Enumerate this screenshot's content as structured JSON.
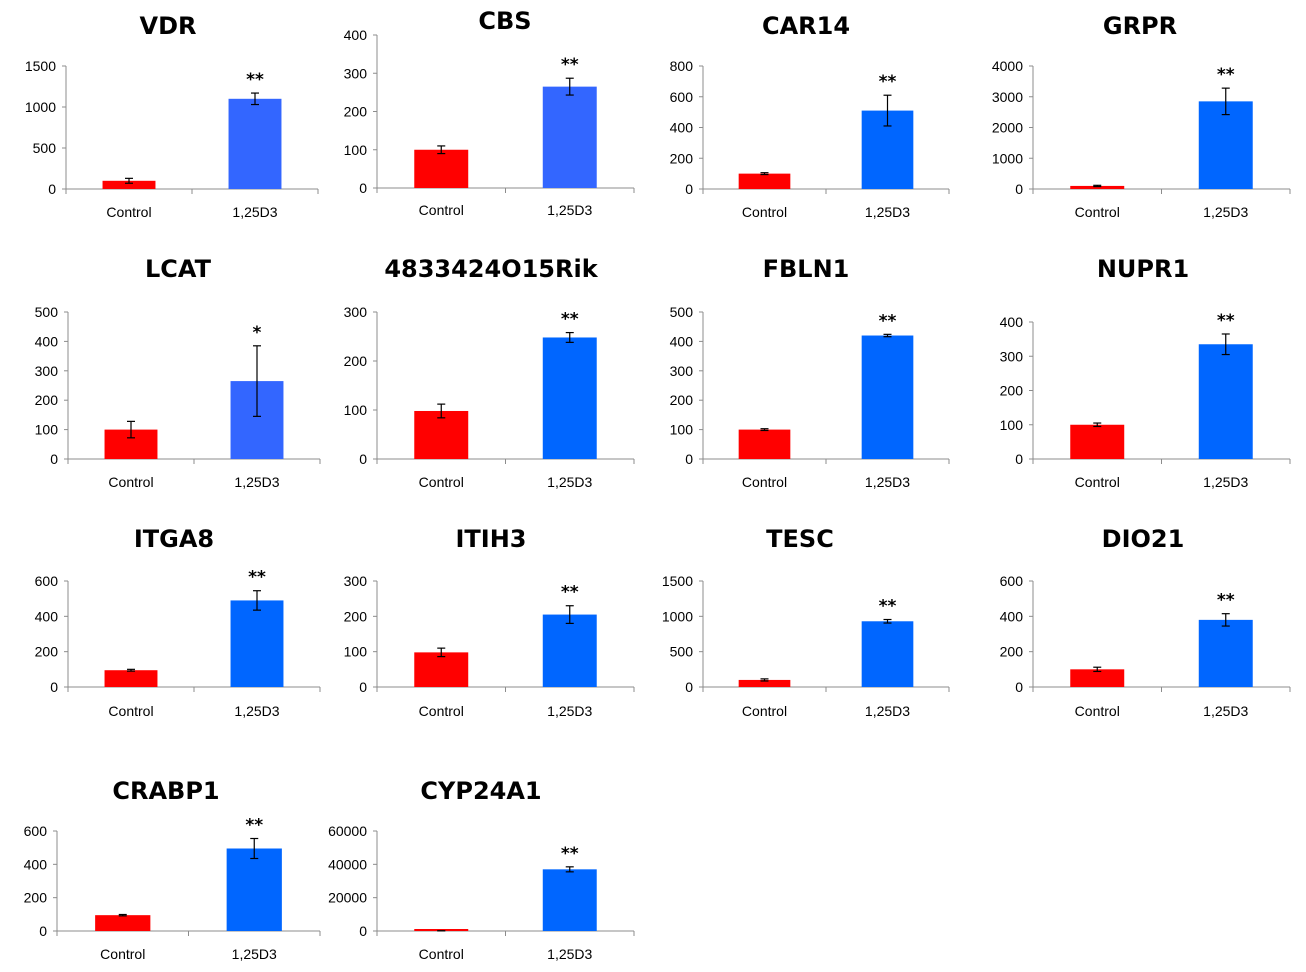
{
  "chart_data": [
    {
      "type": "bar",
      "title": "VDR",
      "categories": [
        "Control",
        "1,25D3"
      ],
      "values": [
        100,
        1100
      ],
      "errors": [
        30,
        70
      ],
      "ylim": [
        0,
        1500
      ],
      "yticks": [
        "0",
        "500",
        "1000",
        "1500"
      ],
      "significance": "**",
      "colors": [
        "#ff0000",
        "#3366ff"
      ]
    },
    {
      "type": "bar",
      "title": "CBS",
      "categories": [
        "Control",
        "1,25D3"
      ],
      "values": [
        100,
        265
      ],
      "errors": [
        10,
        22
      ],
      "ylim": [
        0,
        400
      ],
      "yticks": [
        "0",
        "100",
        "200",
        "300",
        "400"
      ],
      "significance": "**",
      "colors": [
        "#ff0000",
        "#3366ff"
      ]
    },
    {
      "type": "bar",
      "title": "CAR14",
      "categories": [
        "Control",
        "1,25D3"
      ],
      "values": [
        100,
        510
      ],
      "errors": [
        6,
        100
      ],
      "ylim": [
        0,
        800
      ],
      "yticks": [
        "0",
        "200",
        "400",
        "600",
        "800"
      ],
      "significance": "**",
      "colors": [
        "#ff0000",
        "#0066ff"
      ]
    },
    {
      "type": "bar",
      "title": "GRPR",
      "categories": [
        "Control",
        "1,25D3"
      ],
      "values": [
        100,
        2850
      ],
      "errors": [
        20,
        430
      ],
      "ylim": [
        0,
        4000
      ],
      "yticks": [
        "0",
        "1000",
        "2000",
        "3000",
        "4000"
      ],
      "significance": "**",
      "colors": [
        "#ff0000",
        "#0066ff"
      ]
    },
    {
      "type": "bar",
      "title": "LCAT",
      "categories": [
        "Control",
        "1,25D3"
      ],
      "values": [
        100,
        265
      ],
      "errors": [
        28,
        120
      ],
      "ylim": [
        0,
        500
      ],
      "yticks": [
        "0",
        "100",
        "200",
        "300",
        "400",
        "500"
      ],
      "significance": "*",
      "colors": [
        "#ff0000",
        "#3366ff"
      ]
    },
    {
      "type": "bar",
      "title": "4833424O15Rik",
      "categories": [
        "Control",
        "1,25D3"
      ],
      "values": [
        98,
        248
      ],
      "errors": [
        14,
        10
      ],
      "ylim": [
        0,
        300
      ],
      "yticks": [
        "0",
        "100",
        "200",
        "300"
      ],
      "significance": "**",
      "colors": [
        "#ff0000",
        "#0066ff"
      ]
    },
    {
      "type": "bar",
      "title": "FBLN1",
      "categories": [
        "Control",
        "1,25D3"
      ],
      "values": [
        100,
        420
      ],
      "errors": [
        3,
        4
      ],
      "ylim": [
        0,
        500
      ],
      "yticks": [
        "0",
        "100",
        "200",
        "300",
        "400",
        "500"
      ],
      "significance": "**",
      "colors": [
        "#ff0000",
        "#0066ff"
      ]
    },
    {
      "type": "bar",
      "title": "NUPR1",
      "categories": [
        "Control",
        "1,25D3"
      ],
      "values": [
        100,
        335
      ],
      "errors": [
        5,
        30
      ],
      "ylim": [
        0,
        400
      ],
      "yticks": [
        "0",
        "100",
        "200",
        "300",
        "400"
      ],
      "significance": "**",
      "colors": [
        "#ff0000",
        "#0066ff"
      ]
    },
    {
      "type": "bar",
      "title": "ITGA8",
      "categories": [
        "Control",
        "1,25D3"
      ],
      "values": [
        95,
        490
      ],
      "errors": [
        5,
        55
      ],
      "ylim": [
        0,
        600
      ],
      "yticks": [
        "0",
        "200",
        "400",
        "600"
      ],
      "significance": "**",
      "colors": [
        "#ff0000",
        "#0066ff"
      ]
    },
    {
      "type": "bar",
      "title": "ITIH3",
      "categories": [
        "Control",
        "1,25D3"
      ],
      "values": [
        98,
        205
      ],
      "errors": [
        12,
        25
      ],
      "ylim": [
        0,
        300
      ],
      "yticks": [
        "0",
        "100",
        "200",
        "300"
      ],
      "significance": "**",
      "colors": [
        "#ff0000",
        "#0066ff"
      ]
    },
    {
      "type": "bar",
      "title": "TESC",
      "categories": [
        "Control",
        "1,25D3"
      ],
      "values": [
        100,
        930
      ],
      "errors": [
        15,
        25
      ],
      "ylim": [
        0,
        1500
      ],
      "yticks": [
        "0",
        "500",
        "1000",
        "1500"
      ],
      "significance": "**",
      "colors": [
        "#ff0000",
        "#0066ff"
      ]
    },
    {
      "type": "bar",
      "title": "DIO21",
      "categories": [
        "Control",
        "1,25D3"
      ],
      "values": [
        100,
        380
      ],
      "errors": [
        12,
        35
      ],
      "ylim": [
        0,
        600
      ],
      "yticks": [
        "0",
        "200",
        "400",
        "600"
      ],
      "significance": "**",
      "colors": [
        "#ff0000",
        "#0066ff"
      ]
    },
    {
      "type": "bar",
      "title": "CRABP1",
      "categories": [
        "Control",
        "1,25D3"
      ],
      "values": [
        95,
        495
      ],
      "errors": [
        4,
        60
      ],
      "ylim": [
        0,
        600
      ],
      "yticks": [
        "0",
        "200",
        "400",
        "600"
      ],
      "significance": "**",
      "colors": [
        "#ff0000",
        "#0066ff"
      ]
    },
    {
      "type": "bar",
      "title": "CYP24A1",
      "categories": [
        "Control",
        "1,25D3"
      ],
      "values": [
        100,
        37000
      ],
      "errors": [
        10,
        1500
      ],
      "ylim": [
        0,
        60000
      ],
      "yticks": [
        "0",
        "20000",
        "40000",
        "60000"
      ],
      "significance": "**",
      "colors": [
        "#ff0000",
        "#0066ff"
      ]
    }
  ]
}
